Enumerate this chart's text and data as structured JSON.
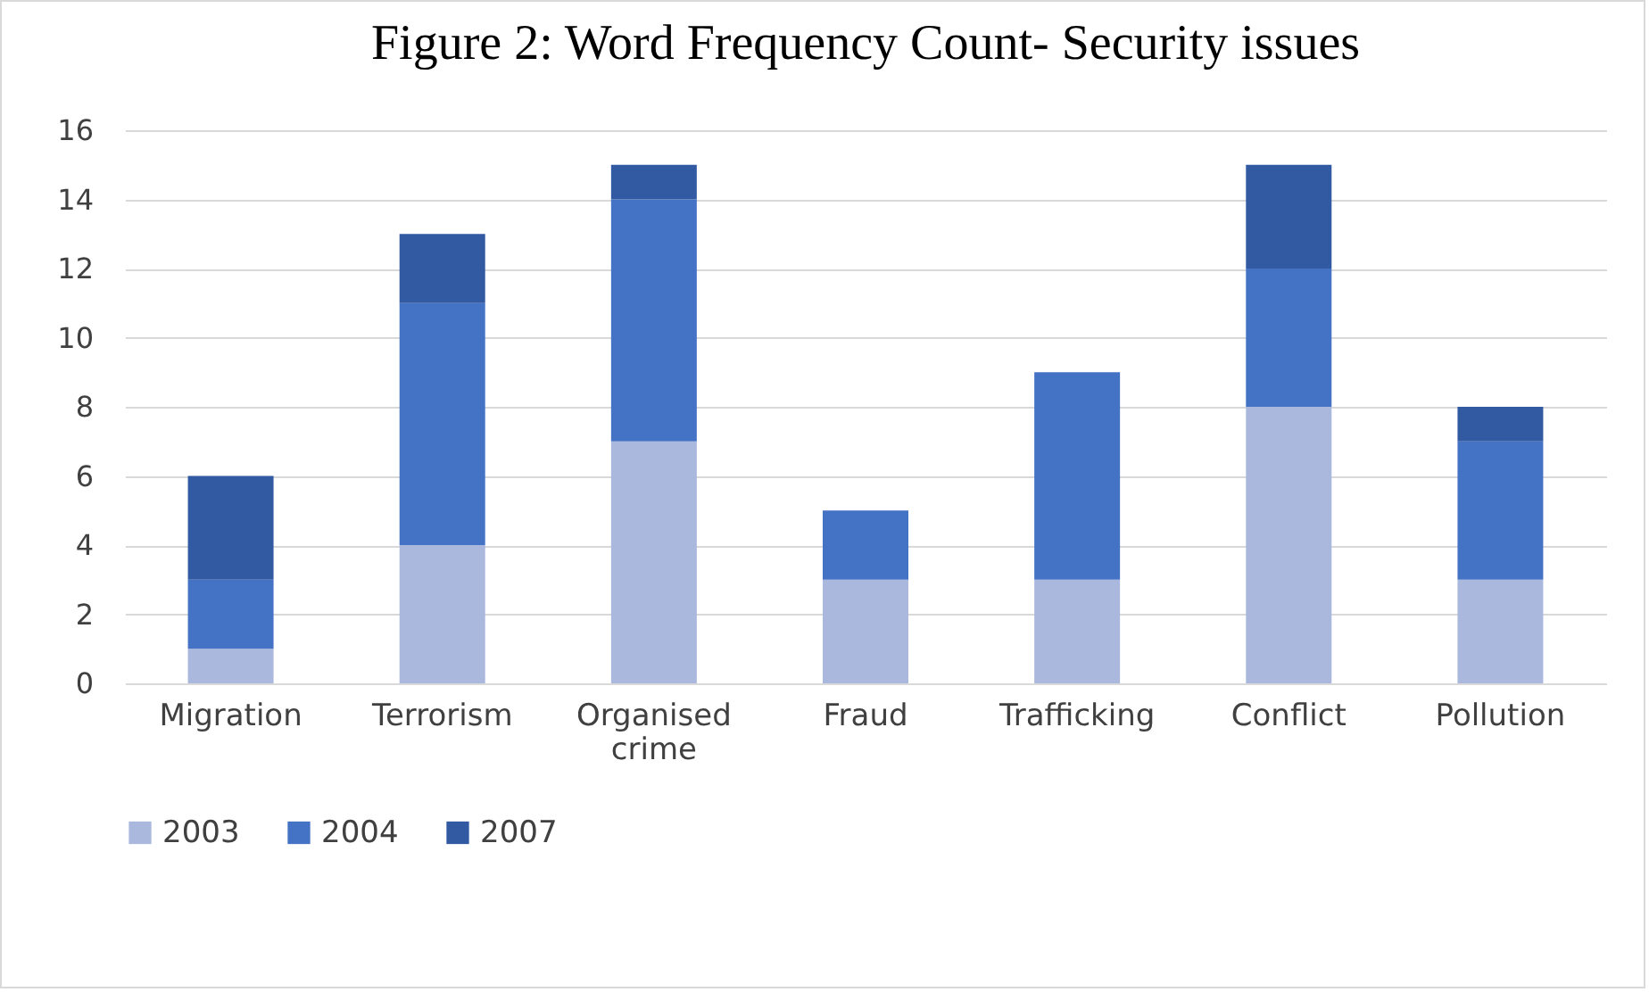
{
  "chart_data": {
    "type": "bar",
    "title": "Figure 2: Word Frequency Count- Security issues",
    "stacked": true,
    "categories": [
      "Migration",
      "Terrorism",
      "Organised crime",
      "Fraud",
      "Trafficking",
      "Conflict",
      "Pollution"
    ],
    "series": [
      {
        "name": "2003",
        "color": "#a9b8dc",
        "values": [
          1,
          4,
          7,
          3,
          3,
          8,
          3
        ]
      },
      {
        "name": "2004",
        "color": "#4472c4",
        "values": [
          2,
          7,
          7,
          2,
          6,
          4,
          4
        ]
      },
      {
        "name": "2007",
        "color": "#325aa2",
        "values": [
          3,
          2,
          1,
          0,
          0,
          3,
          1
        ]
      }
    ],
    "ylim": [
      0,
      16
    ],
    "yticks": [
      0,
      2,
      4,
      6,
      8,
      10,
      12,
      14,
      16
    ],
    "grid": "y",
    "legend": "bottom"
  }
}
